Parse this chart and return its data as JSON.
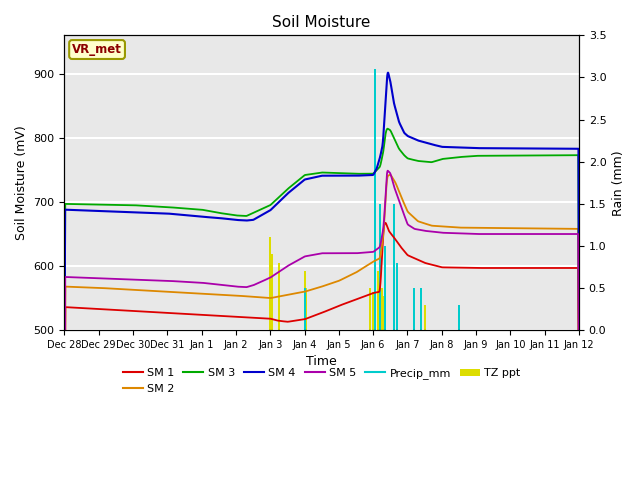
{
  "title": "Soil Moisture",
  "xlabel": "Time",
  "ylabel_left": "Soil Moisture (mV)",
  "ylabel_right": "Rain (mm)",
  "ylim_left": [
    500,
    960
  ],
  "ylim_right": [
    0.0,
    3.5
  ],
  "plot_bg_color": "#e8e8e8",
  "annotation_text": "VR_met",
  "annotation_color": "#8B0000",
  "annotation_bg": "#FFFFCC",
  "annotation_border": "#999900",
  "x_tick_labels": [
    "Dec 28",
    "Dec 29",
    "Dec 30",
    "Dec 31",
    "Jan 1",
    "Jan 2",
    "Jan 3",
    "Jan 4",
    "Jan 5",
    "Jan 6",
    "Jan 7",
    "Jan 8",
    "Jan 9",
    "Jan 10",
    "Jan 11",
    "Jan 12"
  ],
  "series": {
    "SM1": {
      "color": "#dd0000",
      "label": "SM 1"
    },
    "SM2": {
      "color": "#dd8800",
      "label": "SM 2"
    },
    "SM3": {
      "color": "#00aa00",
      "label": "SM 3"
    },
    "SM4": {
      "color": "#0000cc",
      "label": "SM 4"
    },
    "SM5": {
      "color": "#aa00aa",
      "label": "SM 5"
    },
    "Precip": {
      "color": "#00cccc",
      "label": "Precip_mm"
    },
    "TZppt": {
      "color": "#dddd00",
      "label": "TZ ppt"
    }
  }
}
